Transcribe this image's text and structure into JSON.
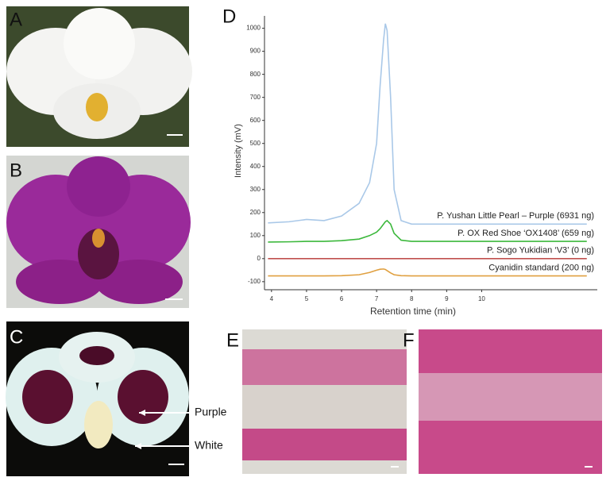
{
  "panels": {
    "a": "A",
    "b": "B",
    "c": "C",
    "d": "D",
    "e": "E",
    "f": "F"
  },
  "annotations": {
    "purple": "Purple",
    "white": "White"
  },
  "chart_data": {
    "type": "line",
    "x_label": "Retention time (min)",
    "y_label": "Intensity (mV)",
    "x": [
      3.9,
      4.5,
      5,
      5.5,
      6,
      6.5,
      6.8,
      7,
      7.1,
      7.2,
      7.25,
      7.3,
      7.4,
      7.5,
      7.7,
      8,
      9,
      10,
      11,
      12,
      13
    ],
    "series": [
      {
        "name": "P. Yushan Little Pearl – Purple (6931 ng)",
        "color": "#a9c8e8",
        "values": [
          155,
          160,
          170,
          165,
          185,
          240,
          330,
          500,
          750,
          950,
          1020,
          990,
          700,
          300,
          165,
          150,
          150,
          150,
          150,
          150,
          150
        ]
      },
      {
        "name": "P. OX Red Shoe ‘OX1408’ (659 ng)",
        "color": "#3cb83c",
        "values": [
          72,
          73,
          75,
          75,
          78,
          85,
          100,
          115,
          130,
          150,
          160,
          165,
          150,
          110,
          80,
          75,
          75,
          75,
          75,
          75,
          75
        ]
      },
      {
        "name": "P. Sogo Yukidian ‘V3’ (0 ng)",
        "color": "#c0504d",
        "values": [
          0,
          0,
          0,
          0,
          0,
          0,
          0,
          0,
          0,
          0,
          0,
          0,
          0,
          0,
          0,
          0,
          0,
          0,
          0,
          0,
          0
        ]
      },
      {
        "name": "Cyanidin standard (200 ng)",
        "color": "#e0a040",
        "values": [
          -75,
          -75,
          -75,
          -75,
          -74,
          -70,
          -60,
          -50,
          -46,
          -45,
          -47,
          -52,
          -62,
          -70,
          -74,
          -75,
          -75,
          -75,
          -75,
          -75,
          -75
        ]
      }
    ],
    "xlim": [
      3.8,
      13.3
    ],
    "xticks": [
      4,
      5,
      6,
      7,
      8,
      9,
      10
    ],
    "ylim": [
      -135,
      1040
    ],
    "yticks": [
      -100,
      0,
      100,
      200,
      300,
      400,
      500,
      600,
      700,
      800,
      900,
      1000
    ]
  }
}
